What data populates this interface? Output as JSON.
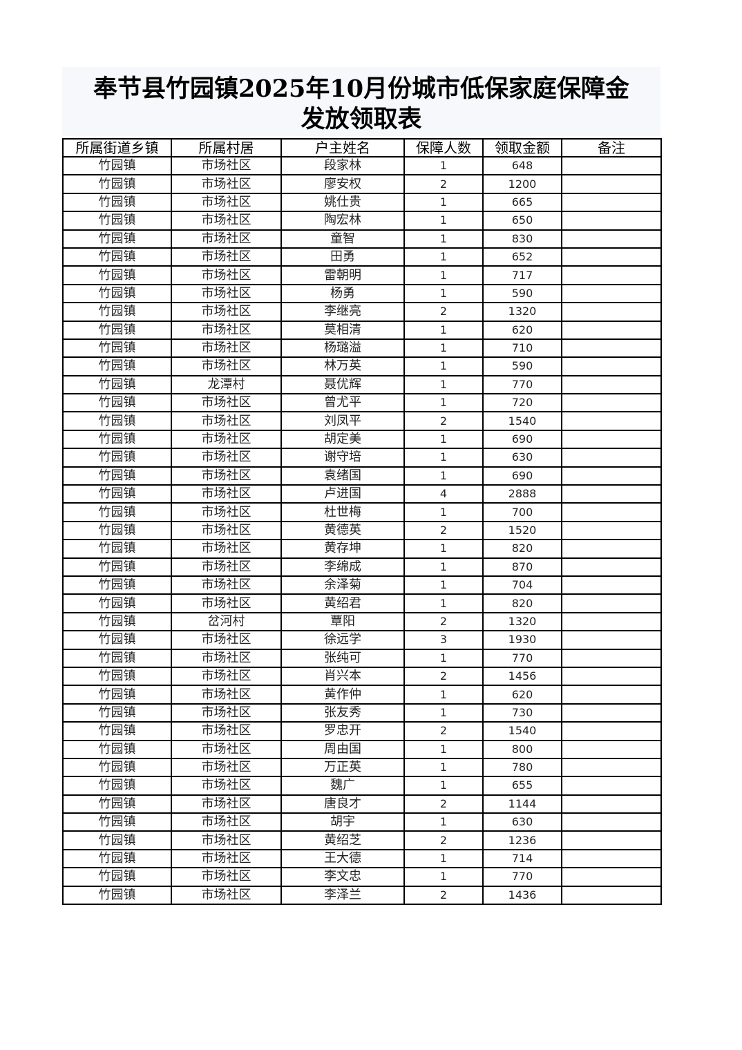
{
  "title": {
    "line1": "奉节县竹园镇2025年10月份城市低保家庭保障金",
    "line2": "发放领取表"
  },
  "table": {
    "headers": [
      "所属街道乡镇",
      "所属村居",
      "户主姓名",
      "保障人数",
      "领取金额",
      "备注"
    ],
    "rows": [
      [
        "竹园镇",
        "市场社区",
        "段家林",
        "1",
        "648",
        ""
      ],
      [
        "竹园镇",
        "市场社区",
        "廖安权",
        "2",
        "1200",
        ""
      ],
      [
        "竹园镇",
        "市场社区",
        "姚仕贵",
        "1",
        "665",
        ""
      ],
      [
        "竹园镇",
        "市场社区",
        "陶宏林",
        "1",
        "650",
        ""
      ],
      [
        "竹园镇",
        "市场社区",
        "童智",
        "1",
        "830",
        ""
      ],
      [
        "竹园镇",
        "市场社区",
        "田勇",
        "1",
        "652",
        ""
      ],
      [
        "竹园镇",
        "市场社区",
        "雷朝明",
        "1",
        "717",
        ""
      ],
      [
        "竹园镇",
        "市场社区",
        "杨勇",
        "1",
        "590",
        ""
      ],
      [
        "竹园镇",
        "市场社区",
        "李继亮",
        "2",
        "1320",
        ""
      ],
      [
        "竹园镇",
        "市场社区",
        "莫相清",
        "1",
        "620",
        ""
      ],
      [
        "竹园镇",
        "市场社区",
        "杨璐溢",
        "1",
        "710",
        ""
      ],
      [
        "竹园镇",
        "市场社区",
        "林万英",
        "1",
        "590",
        ""
      ],
      [
        "竹园镇",
        "龙潭村",
        "聂优辉",
        "1",
        "770",
        ""
      ],
      [
        "竹园镇",
        "市场社区",
        "曾尤平",
        "1",
        "720",
        ""
      ],
      [
        "竹园镇",
        "市场社区",
        "刘凤平",
        "2",
        "1540",
        ""
      ],
      [
        "竹园镇",
        "市场社区",
        "胡定美",
        "1",
        "690",
        ""
      ],
      [
        "竹园镇",
        "市场社区",
        "谢守培",
        "1",
        "630",
        ""
      ],
      [
        "竹园镇",
        "市场社区",
        "袁绪国",
        "1",
        "690",
        ""
      ],
      [
        "竹园镇",
        "市场社区",
        "卢进国",
        "4",
        "2888",
        ""
      ],
      [
        "竹园镇",
        "市场社区",
        "杜世梅",
        "1",
        "700",
        ""
      ],
      [
        "竹园镇",
        "市场社区",
        "黄德英",
        "2",
        "1520",
        ""
      ],
      [
        "竹园镇",
        "市场社区",
        "黄存坤",
        "1",
        "820",
        ""
      ],
      [
        "竹园镇",
        "市场社区",
        "李绵成",
        "1",
        "870",
        ""
      ],
      [
        "竹园镇",
        "市场社区",
        "余泽菊",
        "1",
        "704",
        ""
      ],
      [
        "竹园镇",
        "市场社区",
        "黄绍君",
        "1",
        "820",
        ""
      ],
      [
        "竹园镇",
        "岔河村",
        "覃阳",
        "2",
        "1320",
        ""
      ],
      [
        "竹园镇",
        "市场社区",
        "徐远学",
        "3",
        "1930",
        ""
      ],
      [
        "竹园镇",
        "市场社区",
        "张纯可",
        "1",
        "770",
        ""
      ],
      [
        "竹园镇",
        "市场社区",
        "肖兴本",
        "2",
        "1456",
        ""
      ],
      [
        "竹园镇",
        "市场社区",
        "黄作仲",
        "1",
        "620",
        ""
      ],
      [
        "竹园镇",
        "市场社区",
        "张友秀",
        "1",
        "730",
        ""
      ],
      [
        "竹园镇",
        "市场社区",
        "罗忠开",
        "2",
        "1540",
        ""
      ],
      [
        "竹园镇",
        "市场社区",
        "周由国",
        "1",
        "800",
        ""
      ],
      [
        "竹园镇",
        "市场社区",
        "万正英",
        "1",
        "780",
        ""
      ],
      [
        "竹园镇",
        "市场社区",
        "魏广",
        "1",
        "655",
        ""
      ],
      [
        "竹园镇",
        "市场社区",
        "唐良才",
        "2",
        "1144",
        ""
      ],
      [
        "竹园镇",
        "市场社区",
        "胡宇",
        "1",
        "630",
        ""
      ],
      [
        "竹园镇",
        "市场社区",
        "黄绍芝",
        "2",
        "1236",
        ""
      ],
      [
        "竹园镇",
        "市场社区",
        "王大德",
        "1",
        "714",
        ""
      ],
      [
        "竹园镇",
        "市场社区",
        "李文忠",
        "1",
        "770",
        ""
      ],
      [
        "竹园镇",
        "市场社区",
        "李泽兰",
        "2",
        "1436",
        ""
      ]
    ]
  }
}
